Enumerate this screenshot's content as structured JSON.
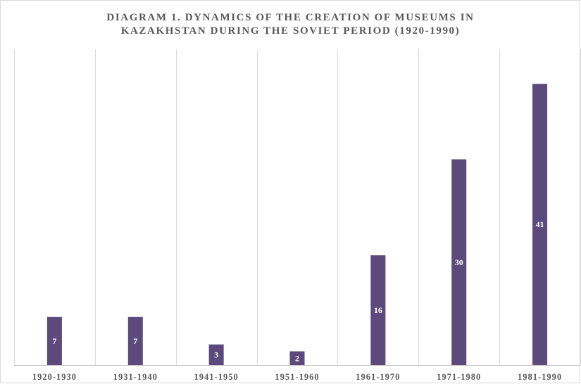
{
  "chart_data": {
    "type": "bar",
    "title_lines": [
      "DIAGRAM 1. DYNAMICS OF THE CREATION OF MUSEUMS IN",
      "KAZAKHSTAN DURING THE SOVIET PERIOD (1920-1990)"
    ],
    "categories": [
      "1920-1930",
      "1931-1940",
      "1941-1950",
      "1951-1960",
      "1961-1970",
      "1971-1980",
      "1981-1990"
    ],
    "values": [
      7,
      7,
      3,
      2,
      16,
      30,
      41
    ],
    "data_labels": [
      "7",
      "7",
      "3",
      "2",
      "16",
      "30",
      "41"
    ],
    "ylim": [
      0,
      45
    ],
    "grid": "vertical category separators",
    "legend": "none",
    "colors": {
      "bar": "#5b4a7b",
      "gridline": "#d9d9d9",
      "axis": "#bfbfbf",
      "text": "#595959"
    }
  }
}
